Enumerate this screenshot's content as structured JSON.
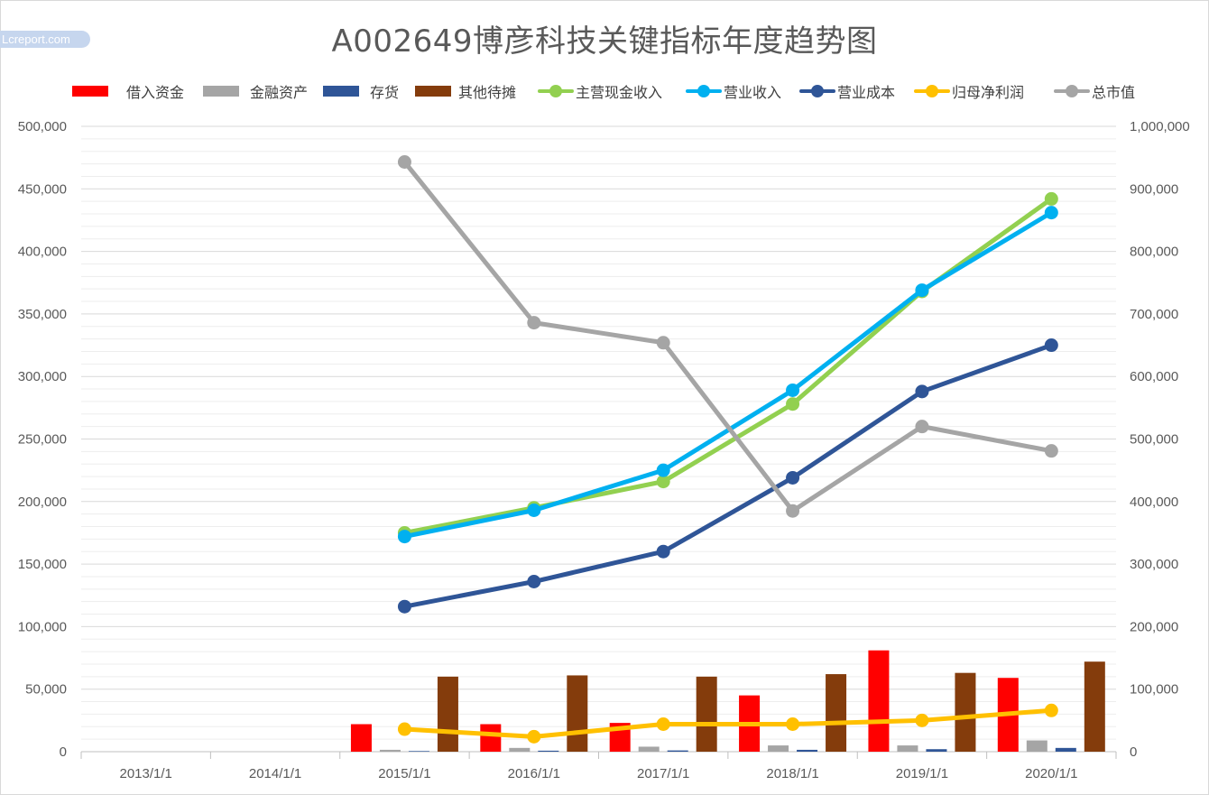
{
  "title": "A002649博彦科技关键指标年度趋势图",
  "watermark": "Lcreport.com",
  "legend": [
    {
      "label": "借入资金",
      "kind": "bar",
      "color": "#ff0000"
    },
    {
      "label": "金融资产",
      "kind": "bar",
      "color": "#a5a5a5"
    },
    {
      "label": "存货",
      "kind": "bar",
      "color": "#2f5597"
    },
    {
      "label": "其他待摊",
      "kind": "bar",
      "color": "#843c0c"
    },
    {
      "label": "主营现金收入",
      "kind": "line",
      "color": "#92d050"
    },
    {
      "label": "营业收入",
      "kind": "line",
      "color": "#00b0f0"
    },
    {
      "label": "营业成本",
      "kind": "line",
      "color": "#2f5597"
    },
    {
      "label": "归母净利润",
      "kind": "line",
      "color": "#ffc000"
    },
    {
      "label": "总市值",
      "kind": "line",
      "color": "#a5a5a5"
    }
  ],
  "chart_data": {
    "type": "bar",
    "categories": [
      "2013/1/1",
      "2014/1/1",
      "2015/1/1",
      "2016/1/1",
      "2017/1/1",
      "2018/1/1",
      "2019/1/1",
      "2020/1/1"
    ],
    "y_left": {
      "min": 0,
      "max": 500000,
      "step": 50000,
      "ticks": [
        "0",
        "50,000",
        "100,000",
        "150,000",
        "200,000",
        "250,000",
        "300,000",
        "350,000",
        "400,000",
        "450,000",
        "500,000"
      ]
    },
    "y_right": {
      "min": 0,
      "max": 1000000,
      "step": 100000,
      "ticks": [
        "0",
        "100,000",
        "200,000",
        "300,000",
        "400,000",
        "500,000",
        "600,000",
        "700,000",
        "800,000",
        "900,000",
        "1,000,000"
      ]
    },
    "bar_series": [
      {
        "name": "借入资金",
        "color": "#ff0000",
        "values": [
          null,
          null,
          22000,
          22000,
          23000,
          45000,
          81000,
          59000
        ]
      },
      {
        "name": "金融资产",
        "color": "#a5a5a5",
        "values": [
          null,
          null,
          1500,
          3000,
          4000,
          5000,
          5000,
          9000
        ]
      },
      {
        "name": "存货",
        "color": "#2f5597",
        "values": [
          null,
          null,
          500,
          800,
          1000,
          1500,
          2000,
          3000
        ]
      },
      {
        "name": "其他待摊",
        "color": "#843c0c",
        "values": [
          null,
          null,
          60000,
          61000,
          60000,
          62000,
          63000,
          72000
        ]
      }
    ],
    "line_series": [
      {
        "name": "主营现金收入",
        "color": "#92d050",
        "axis": "left",
        "values": [
          null,
          null,
          175000,
          195000,
          216000,
          278000,
          368000,
          442000
        ]
      },
      {
        "name": "营业收入",
        "color": "#00b0f0",
        "axis": "left",
        "values": [
          null,
          null,
          172000,
          193000,
          225000,
          289000,
          369000,
          431000
        ]
      },
      {
        "name": "营业成本",
        "color": "#2f5597",
        "axis": "left",
        "values": [
          null,
          null,
          116000,
          136000,
          160000,
          219000,
          288000,
          325000
        ]
      },
      {
        "name": "归母净利润",
        "color": "#ffc000",
        "axis": "left",
        "values": [
          null,
          null,
          18000,
          12000,
          22000,
          22000,
          25000,
          33000
        ]
      },
      {
        "name": "总市值",
        "color": "#a5a5a5",
        "axis": "right",
        "values": [
          null,
          null,
          943000,
          686000,
          654000,
          385000,
          520000,
          481000
        ]
      }
    ]
  }
}
